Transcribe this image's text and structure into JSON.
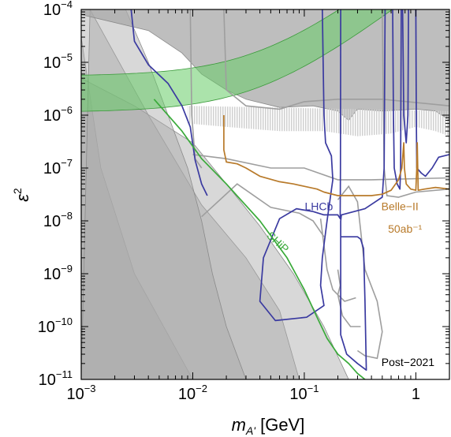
{
  "chart_data": {
    "type": "line",
    "title": "",
    "xlabel": "m_A' [GeV]",
    "ylabel": "ε²",
    "x_scale": "log",
    "y_scale": "log",
    "xlim": [
      0.001,
      2
    ],
    "ylim": [
      1e-11,
      0.0001
    ],
    "x_ticks": [
      {
        "value": 0.001,
        "base": "10",
        "exp": "−3"
      },
      {
        "value": 0.01,
        "base": "10",
        "exp": "−2"
      },
      {
        "value": 0.1,
        "base": "10",
        "exp": "−1"
      },
      {
        "value": 1,
        "base": "1",
        "exp": ""
      }
    ],
    "y_ticks": [
      {
        "value": 1e-11,
        "base": "10",
        "exp": "−11"
      },
      {
        "value": 1e-10,
        "base": "10",
        "exp": "−10"
      },
      {
        "value": 1e-09,
        "base": "10",
        "exp": "−9"
      },
      {
        "value": 1e-08,
        "base": "10",
        "exp": "−8"
      },
      {
        "value": 1e-07,
        "base": "10",
        "exp": "−7"
      },
      {
        "value": 1e-06,
        "base": "10",
        "exp": "−6"
      },
      {
        "value": 1e-05,
        "base": "10",
        "exp": "−5"
      },
      {
        "value": 0.0001,
        "base": "10",
        "exp": "−4"
      }
    ],
    "colors": {
      "excluded": "#a8a8a8",
      "excluded_edge": "#8a8a8a",
      "lhcb": "#3a3aa0",
      "belle": "#b87a2a",
      "ship": "#3aaa3a",
      "g2_band": "#66cc66",
      "gray_curve": "#9e9e9e"
    },
    "series": [
      {
        "name": "LHCb",
        "color": "#3a3aa0",
        "segments": [
          [
            [
              0.0028,
              0.0001
            ],
            [
              0.003,
              2.5e-05
            ],
            [
              0.004,
              9e-06
            ],
            [
              0.006,
              4e-06
            ],
            [
              0.008,
              1.5e-06
            ],
            [
              0.0095,
              6e-07
            ],
            [
              0.0105,
              1.4e-07
            ],
            [
              0.012,
              5e-08
            ],
            [
              0.0135,
              3e-08
            ]
          ],
          [
            [
              0.145,
              0.0001
            ],
            [
              0.15,
              1e-06
            ],
            [
              0.155,
              3e-07
            ],
            [
              0.175,
              1.7e-07
            ],
            [
              0.18,
              6e-08
            ],
            [
              0.16,
              1e-08
            ],
            [
              0.145,
              2e-09
            ],
            [
              0.14,
              6e-10
            ],
            [
              0.15,
              2.5e-10
            ],
            [
              0.105,
              1.5e-10
            ],
            [
              0.055,
              1.3e-10
            ],
            [
              0.04,
              3e-10
            ],
            [
              0.043,
              2e-09
            ],
            [
              0.06,
              1.1e-08
            ],
            [
              0.085,
              1.7e-08
            ],
            [
              0.12,
              1.5e-08
            ],
            [
              0.15,
              1.3e-08
            ],
            [
              0.2,
              1.3e-08
            ],
            [
              0.21,
              1.1e-08
            ],
            [
              0.21,
              1.5e-08
            ],
            [
              0.211,
              1e-07
            ],
            [
              0.212,
              0.0001
            ]
          ],
          [
            [
              0.212,
              1e-08
            ],
            [
              0.212,
              5e-09
            ],
            [
              0.3,
              5e-09
            ],
            [
              0.32,
              4.5e-09
            ],
            [
              0.34,
              3e-09
            ],
            [
              0.35,
              3e-10
            ],
            [
              0.36,
              1.5e-11
            ],
            [
              0.3,
              2e-11
            ],
            [
              0.24,
              3e-11
            ],
            [
              0.212,
              7e-11
            ],
            [
              0.212,
              1e-08
            ]
          ],
          [
            [
              0.212,
              1e-08
            ],
            [
              0.215,
              1.3e-08
            ],
            [
              0.35,
              1.7e-08
            ],
            [
              0.5,
              2.8e-08
            ],
            [
              0.52,
              1e-07
            ],
            [
              0.53,
              0.0001
            ]
          ],
          [
            [
              0.62,
              0.0001
            ],
            [
              0.63,
              1e-06
            ],
            [
              0.64,
              1e-07
            ],
            [
              0.68,
              5e-08
            ],
            [
              0.72,
              4e-08
            ],
            [
              0.73,
              1e-07
            ],
            [
              0.74,
              0.0001
            ]
          ],
          [
            [
              0.76,
              0.0001
            ],
            [
              0.77,
              1e-05
            ],
            [
              0.78,
              1e-06
            ],
            [
              0.82,
              3e-07
            ],
            [
              0.85,
              1e-06
            ],
            [
              0.86,
              0.0001
            ]
          ],
          [
            [
              1.0,
              0.0001
            ],
            [
              1.01,
              1e-06
            ],
            [
              1.02,
              1e-07
            ],
            [
              1.12,
              8e-08
            ],
            [
              1.22,
              7e-08
            ],
            [
              1.4,
              1e-07
            ],
            [
              1.6,
              1.6e-07
            ],
            [
              2.0,
              1.8e-07
            ]
          ]
        ]
      },
      {
        "name": "Belle−II",
        "label_line2": "50ab⁻¹",
        "color": "#b87a2a",
        "segments": [
          [
            [
              0.019,
              1e-06
            ],
            [
              0.019,
              2.2e-07
            ],
            [
              0.02,
              1.3e-07
            ],
            [
              0.025,
              1.2e-07
            ],
            [
              0.03,
              1e-07
            ],
            [
              0.04,
              7e-08
            ],
            [
              0.06,
              5.5e-08
            ],
            [
              0.08,
              5e-08
            ],
            [
              0.1,
              4.5e-08
            ],
            [
              0.13,
              4e-08
            ],
            [
              0.15,
              3.5e-08
            ],
            [
              0.2,
              3e-08
            ],
            [
              0.3,
              3e-08
            ],
            [
              0.4,
              3e-08
            ],
            [
              0.5,
              3.2e-08
            ],
            [
              0.6,
              3.8e-08
            ],
            [
              0.7,
              6e-08
            ],
            [
              0.75,
              1e-07
            ],
            [
              0.78,
              3e-07
            ],
            [
              0.79,
              1e-07
            ],
            [
              0.82,
              5e-08
            ],
            [
              0.9,
              4e-08
            ],
            [
              1.0,
              3.8e-08
            ],
            [
              1.02,
              1e-07
            ],
            [
              1.03,
              3e-07
            ],
            [
              1.05,
              3.8e-08
            ],
            [
              1.2,
              4e-08
            ],
            [
              1.5,
              4.3e-08
            ],
            [
              2.0,
              4e-08
            ]
          ]
        ]
      },
      {
        "name": "SHiP",
        "color": "#3aaa3a",
        "segments": [
          [
            [
              0.0045,
              2e-06
            ],
            [
              0.008,
              5e-07
            ],
            [
              0.012,
              1.5e-07
            ],
            [
              0.02,
              5e-08
            ],
            [
              0.04,
              1e-08
            ],
            [
              0.07,
              2e-09
            ],
            [
              0.1,
              5e-10
            ],
            [
              0.13,
              1.5e-10
            ],
            [
              0.16,
              6e-11
            ],
            [
              0.2,
              3e-11
            ],
            [
              0.25,
              2e-11
            ],
            [
              0.3,
              1.3e-11
            ],
            [
              0.35,
              1e-11
            ]
          ]
        ]
      }
    ],
    "annotations": [
      {
        "text": "LHCb",
        "x": 0.135,
        "y": 1.6e-08,
        "color": "#3a3aa0"
      },
      {
        "text": "Belle−II",
        "x": 0.72,
        "y": 1.6e-08,
        "color": "#b87a2a"
      },
      {
        "text": "50ab⁻¹",
        "x": 0.8,
        "y": 6e-09,
        "color": "#b87a2a"
      },
      {
        "text": "SHiP",
        "x": 0.055,
        "y": 3.5e-09,
        "color": "#3aaa3a",
        "rotate": 43
      },
      {
        "text": "Post−2021",
        "x": 0.85,
        "y": 1.8e-11,
        "color": "#000000"
      }
    ]
  }
}
